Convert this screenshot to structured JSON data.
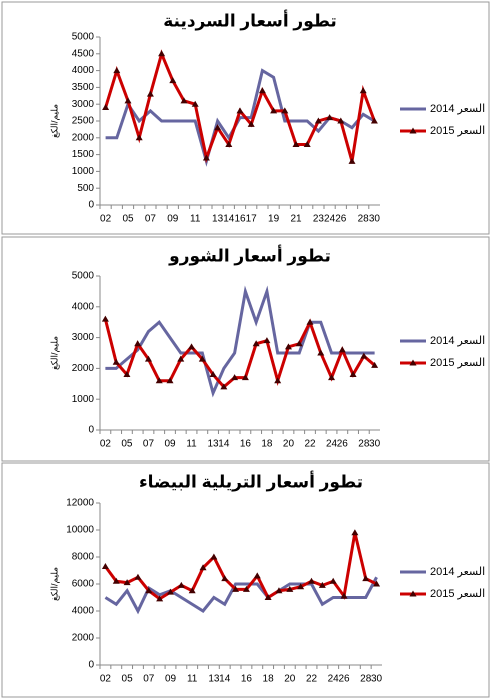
{
  "chart_data": [
    {
      "type": "line",
      "title": "تطور أسعار السردينة",
      "y_label": "مليم/الكغ",
      "categories": [
        "02",
        null,
        "05",
        null,
        "07",
        null,
        "09",
        null,
        "11",
        null,
        "13",
        "14",
        "16",
        "17",
        null,
        "19",
        null,
        "21",
        null,
        "23",
        "24",
        "26",
        null,
        "28",
        "30"
      ],
      "series": [
        {
          "name": "السعر 2014",
          "color": "#6666a0",
          "values": [
            2000,
            2000,
            3000,
            2500,
            2800,
            2500,
            2500,
            2500,
            2500,
            1300,
            2500,
            2000,
            2600,
            2600,
            4000,
            3800,
            2500,
            2500,
            2500,
            2200,
            2600,
            2500,
            2300,
            2700,
            2500
          ]
        },
        {
          "name": "السعر 2015",
          "color": "#cc0000",
          "values": [
            2900,
            4000,
            3100,
            2000,
            3300,
            4500,
            3700,
            3100,
            3000,
            1400,
            2300,
            1800,
            2800,
            2400,
            3400,
            2800,
            2800,
            1800,
            1800,
            2500,
            2600,
            2500,
            1300,
            3400,
            2500
          ]
        }
      ],
      "ylim": [
        0,
        5000
      ],
      "yticks": [
        0,
        500,
        1000,
        1500,
        2000,
        2500,
        3000,
        3500,
        4000,
        4500,
        5000
      ],
      "grid": false,
      "legend": "right"
    },
    {
      "type": "line",
      "title": "تطور أسعار الشورو",
      "y_label": "مليم/الكغ",
      "categories": [
        "02",
        null,
        "05",
        null,
        "07",
        null,
        "09",
        null,
        "11",
        null,
        "13",
        "14",
        null,
        "16",
        null,
        "18",
        null,
        "20",
        null,
        "22",
        null,
        "24",
        "26",
        null,
        "28",
        "30"
      ],
      "series": [
        {
          "name": "السعر 2014",
          "color": "#6666a0",
          "values": [
            2000,
            2000,
            2300,
            2600,
            3200,
            3500,
            3000,
            2500,
            2500,
            2500,
            1200,
            2000,
            2500,
            4500,
            3500,
            4500,
            2500,
            2500,
            2500,
            3500,
            3500,
            2500,
            2500,
            2500,
            2500,
            2500
          ]
        },
        {
          "name": "السعر 2015",
          "color": "#cc0000",
          "values": [
            3600,
            2200,
            1800,
            2800,
            2300,
            1600,
            1600,
            2300,
            2700,
            2300,
            1800,
            1400,
            1700,
            1700,
            2800,
            2900,
            1600,
            2700,
            2800,
            3500,
            2500,
            1700,
            2600,
            1800,
            2400,
            2100
          ]
        }
      ],
      "ylim": [
        0,
        5000
      ],
      "yticks": [
        0,
        1000,
        2000,
        3000,
        4000,
        5000
      ],
      "grid": false,
      "legend": "right"
    },
    {
      "type": "line",
      "title": "تطور أسعار التريلية البيضاء",
      "y_label": "مليم/الكغ",
      "categories": [
        "02",
        null,
        "05",
        null,
        "07",
        null,
        "09",
        null,
        "11",
        null,
        "13",
        "14",
        null,
        "16",
        null,
        "18",
        null,
        "20",
        null,
        "22",
        null,
        "24",
        "26",
        null,
        "28",
        "30"
      ],
      "series": [
        {
          "name": "السعر 2014",
          "color": "#6666a0",
          "values": [
            5000,
            4500,
            5500,
            4000,
            5700,
            5200,
            5500,
            5000,
            4500,
            4000,
            5000,
            4500,
            6000,
            6000,
            6000,
            5000,
            5500,
            6000,
            6000,
            6000,
            4500,
            5000,
            5000,
            5000,
            5000,
            6500
          ]
        },
        {
          "name": "السعر 2015",
          "color": "#cc0000",
          "values": [
            7300,
            6200,
            6100,
            6500,
            5500,
            4900,
            5400,
            5900,
            5500,
            7200,
            8000,
            6400,
            5600,
            5600,
            6600,
            5000,
            5500,
            5600,
            5800,
            6200,
            5900,
            6200,
            5100,
            9800,
            6400,
            6000
          ]
        }
      ],
      "ylim": [
        0,
        12000
      ],
      "yticks": [
        0,
        2000,
        4000,
        6000,
        8000,
        10000,
        12000
      ],
      "grid": false,
      "legend": "right"
    }
  ]
}
